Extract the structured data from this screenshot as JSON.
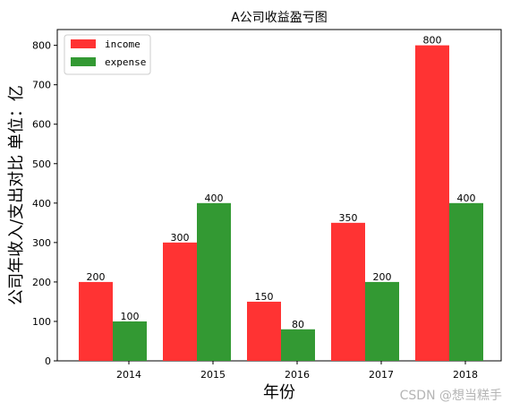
{
  "chart_data": {
    "type": "bar",
    "title": "A公司收益盈亏图",
    "xlabel": "年份",
    "ylabel": "公司年收入/支出对比 单位：亿",
    "categories": [
      "2014",
      "2015",
      "2016",
      "2017",
      "2018"
    ],
    "series": [
      {
        "name": "income",
        "values": [
          200,
          300,
          150,
          350,
          800
        ],
        "color": "#ff3333"
      },
      {
        "name": "expense",
        "values": [
          100,
          400,
          80,
          200,
          400
        ],
        "color": "#339933"
      }
    ],
    "ylim": [
      0,
      840
    ],
    "yticks": [
      0,
      100,
      200,
      300,
      400,
      500,
      600,
      700,
      800
    ],
    "grid": false,
    "legend_position": "top-left",
    "data_labels": true
  },
  "watermark": "CSDN @想当糕手"
}
